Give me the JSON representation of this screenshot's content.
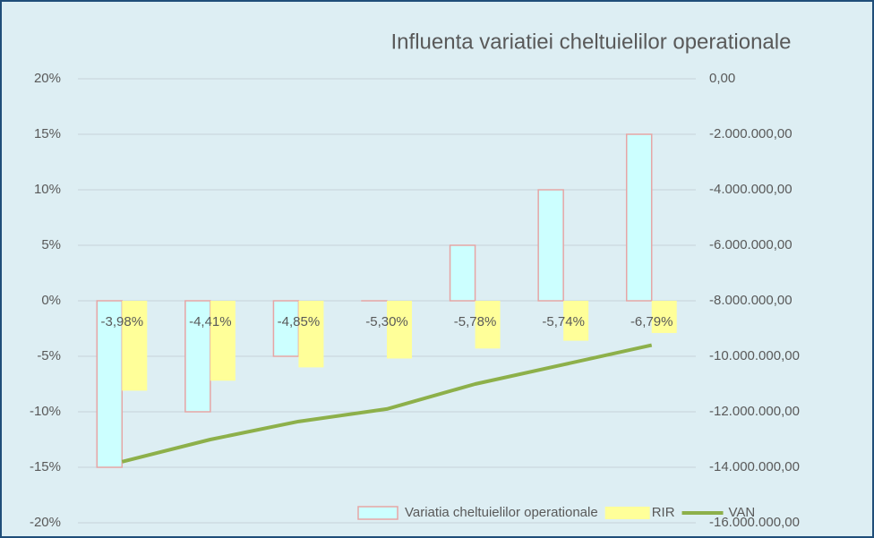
{
  "chart_data": {
    "type": "bar-line",
    "title": "Influenta variatiei  cheltuielilor operationale",
    "categories": [
      null,
      null,
      null,
      null,
      null,
      null,
      null
    ],
    "series": [
      {
        "name": "Variatia cheltuielilor operationale",
        "type": "bar",
        "color": "#ccffff",
        "edgecolor": "#e6a5a5",
        "values": [
          -15,
          -10,
          -5,
          0,
          5,
          10,
          15
        ]
      },
      {
        "name": "RIR",
        "type": "bar",
        "color": "#ffff99",
        "values": [
          -8.1,
          -7.2,
          -6.0,
          -5.2,
          -4.3,
          -3.6,
          -2.9
        ]
      },
      {
        "name": "VAN",
        "type": "line",
        "color": "#8db04a",
        "axis": "y2",
        "values": [
          -13800000,
          -13000000,
          -12350000,
          -11900000,
          -11000000,
          -10300000,
          -9600000
        ]
      }
    ],
    "annotations": [
      "-3,98%",
      "-4,41%",
      "-4,85%",
      "-5,30%",
      "-5,78%",
      "-5,74%",
      "-6,79%"
    ],
    "ylim": [
      -20,
      20
    ],
    "yticks": [
      {
        "value": 20,
        "label": "20%"
      },
      {
        "value": 15,
        "label": "15%"
      },
      {
        "value": 10,
        "label": "10%"
      },
      {
        "value": 5,
        "label": "5%"
      },
      {
        "value": 0,
        "label": "0%"
      },
      {
        "value": -5,
        "label": "-5%"
      },
      {
        "value": -10,
        "label": "-10%"
      },
      {
        "value": -15,
        "label": "-15%"
      },
      {
        "value": -20,
        "label": "-20%"
      }
    ],
    "y2lim": [
      -16000000,
      0
    ],
    "y2ticks": [
      {
        "value": 0,
        "label": "0,00"
      },
      {
        "value": -2000000,
        "label": "-2.000.000,00"
      },
      {
        "value": -4000000,
        "label": "-4.000.000,00"
      },
      {
        "value": -6000000,
        "label": "-6.000.000,00"
      },
      {
        "value": -8000000,
        "label": "-8.000.000,00"
      },
      {
        "value": -10000000,
        "label": "-10.000.000,00"
      },
      {
        "value": -12000000,
        "label": "-12.000.000,00"
      },
      {
        "value": -14000000,
        "label": "-14.000.000,00"
      },
      {
        "value": -16000000,
        "label": "-16.000.000,00"
      }
    ],
    "grid": true,
    "legend": "bottom"
  }
}
